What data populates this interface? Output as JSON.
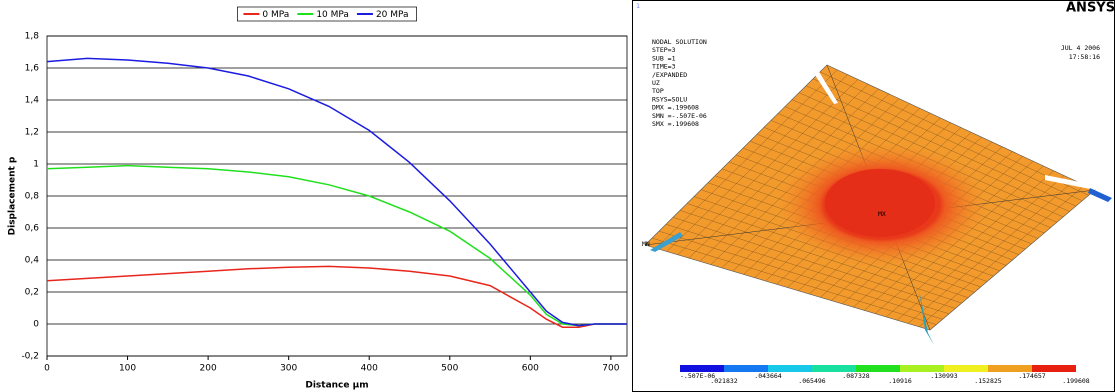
{
  "chart_data": {
    "type": "line",
    "x_label": "Distance μm",
    "y_label": "Displacement      p",
    "x": [
      0,
      50,
      100,
      150,
      200,
      250,
      300,
      350,
      400,
      450,
      500,
      550,
      600,
      620,
      640,
      660,
      680,
      700,
      720
    ],
    "series": [
      {
        "name": "0 MPa",
        "color": "#e8261c",
        "values": [
          0.27,
          0.285,
          0.3,
          0.315,
          0.33,
          0.345,
          0.355,
          0.36,
          0.35,
          0.33,
          0.3,
          0.24,
          0.1,
          0.03,
          -0.02,
          -0.02,
          0,
          0,
          0
        ]
      },
      {
        "name": "10 MPa",
        "color": "#22e01e",
        "values": [
          0.97,
          0.98,
          0.99,
          0.98,
          0.97,
          0.95,
          0.92,
          0.87,
          0.8,
          0.7,
          0.58,
          0.41,
          0.18,
          0.06,
          0.0,
          -0.01,
          0,
          0,
          0
        ]
      },
      {
        "name": "20 MPa",
        "color": "#1c1ce0",
        "values": [
          1.64,
          1.66,
          1.65,
          1.63,
          1.6,
          1.55,
          1.47,
          1.36,
          1.21,
          1.01,
          0.77,
          0.5,
          0.2,
          0.08,
          0.01,
          -0.01,
          0,
          0,
          0
        ]
      }
    ],
    "xlim": [
      0,
      720
    ],
    "xticks": [
      0,
      100,
      200,
      300,
      400,
      500,
      600,
      700
    ],
    "ylim": [
      -0.2,
      1.8
    ],
    "yticks": [
      {
        "value": -0.2,
        "label": "-0,2"
      },
      0,
      {
        "value": 0.2,
        "label": "0,2"
      },
      {
        "value": 0.4,
        "label": "0,4"
      },
      {
        "value": 0.6,
        "label": "0,6"
      },
      {
        "value": 0.8,
        "label": "0,8"
      },
      1,
      {
        "value": 1.2,
        "label": "1,2"
      },
      {
        "value": 1.4,
        "label": "1,4"
      },
      {
        "value": 1.6,
        "label": "1,6"
      },
      {
        "value": 1.8,
        "label": "1,8"
      }
    ],
    "grid": true,
    "legend": "top"
  },
  "ansys": {
    "window_number": "1",
    "info": [
      "NODAL SOLUTION",
      "STEP=3",
      "SUB =1",
      "TIME=3",
      "/EXPANDED",
      "UZ",
      "TOP",
      "RSYS=SOLU",
      "DMX =.199608",
      "SMN =-.507E-06",
      "SMX =.199608"
    ],
    "logo": "ANSYS",
    "date": "JUL  4 2006",
    "time": "17:58:16",
    "min_marker": "MN",
    "max_marker": "MX",
    "colorbar_labels": [
      "-.507E-06",
      ".021832",
      ".043664",
      ".065496",
      ".087328",
      ".10916",
      ".130993",
      ".152825",
      ".174657",
      ".199608"
    ]
  }
}
